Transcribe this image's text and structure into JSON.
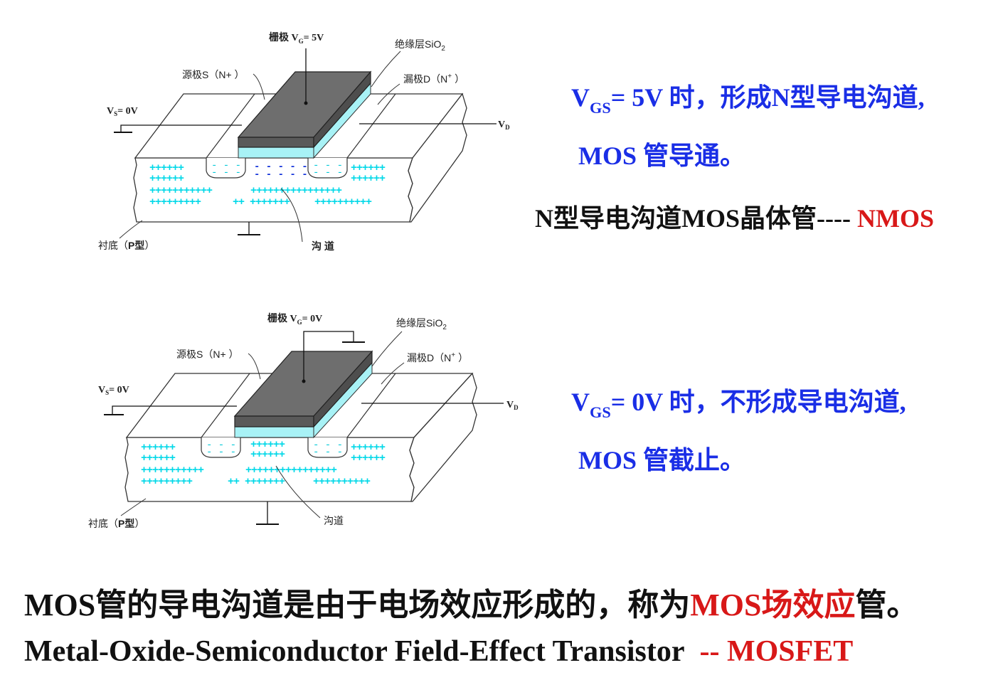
{
  "diagram1": {
    "gate_label": "栅极 V",
    "gate_sub": "G",
    "gate_value": "= 5V",
    "oxide_label": "绝缘层SiO",
    "oxide_sub": "2",
    "source_label": "源极S（N+ ）",
    "drain_label": "漏极D（N",
    "drain_sup": "+",
    "drain_close": "）",
    "vs_label": "V",
    "vs_sub": "S",
    "vs_value": "= 0V",
    "vd_label": "V",
    "vd_sub": "D",
    "substrate_label": "衬底（",
    "substrate_p": "P型",
    "substrate_close": "）",
    "channel_label": "沟 道",
    "plus_row1_left": "++++++",
    "plus_row1_right": "++++++",
    "plus_row2_left": "++++++",
    "plus_row2_right": "++++++",
    "plus_row3_left": "+++++++++++",
    "plus_row3_right": "++++++++++++++++",
    "plus_row4_left": "+++++++++",
    "plus_row4_mid": "++ +++++++",
    "plus_row4_right": "++++++++++",
    "n_minus": "- - -",
    "channel_minus": "- - - - -"
  },
  "diagram2": {
    "gate_label": "栅极 V",
    "gate_sub": "G",
    "gate_value": "= 0V",
    "oxide_label": "绝缘层SiO",
    "oxide_sub": "2",
    "source_label": "源极S（N+ ）",
    "drain_label": "漏极D（N",
    "drain_sup": "+",
    "drain_close": "）",
    "vs_label": "V",
    "vs_sub": "S",
    "vs_value": "= 0V",
    "vd_label": "V",
    "vd_sub": "D",
    "substrate_label": "衬底（",
    "substrate_p": "P型",
    "substrate_close": "）",
    "channel_label": "沟道",
    "plus_row1_left": "++++++",
    "plus_row1_right": "++++++",
    "plus_row2_left": "++++++",
    "plus_row2_right": "++++++",
    "plus_row3_left": "+++++++++++",
    "plus_row3_right": "++++++++++++++++",
    "plus_row4_left": "+++++++++",
    "plus_row4_mid": "++ +++++++",
    "plus_row4_right": "++++++++++",
    "channel_plus1": "++++++",
    "channel_plus2": "++++++",
    "n_minus": "- - -"
  },
  "text1": {
    "v": "V",
    "sub": "GS",
    "rest": "= 5V 时，形成N型导电沟道,",
    "line2": "MOS 管导通。",
    "nmos_prefix": "N型导电沟道MOS晶体管----",
    "nmos": "NMOS"
  },
  "text2": {
    "v": "V",
    "sub": "GS",
    "rest": "= 0V 时，不形成导电沟道,",
    "line2": "MOS 管截止。"
  },
  "bottom": {
    "line1_a": "MOS管的导电沟道是由于电场效应形成的，称为",
    "line1_red": "MOS场效应",
    "line1_b": "管。",
    "line2_a": "Metal-Oxide-Semiconductor Field-Effect Transistor",
    "line2_red": "-- MOSFET"
  },
  "colors": {
    "blue_text": "#1a2ee6",
    "red_text": "#d81818",
    "gate_fill": "#6e6e6e",
    "oxide_fill": "#a8f2f6",
    "charge": "#00d8e8"
  }
}
